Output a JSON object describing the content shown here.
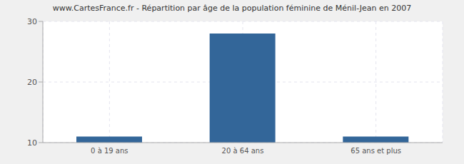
{
  "chart_data": {
    "type": "bar",
    "title": "www.CartesFrance.fr - Répartition par âge de la population féminine de Ménil-Jean en 2007",
    "categories": [
      "0 à 19 ans",
      "20 à 64 ans",
      "65 ans et plus"
    ],
    "values": [
      11,
      28,
      11
    ],
    "color": "#336699",
    "ylim": [
      10,
      30
    ],
    "yticks": [
      10,
      20,
      30
    ],
    "grid": true
  }
}
